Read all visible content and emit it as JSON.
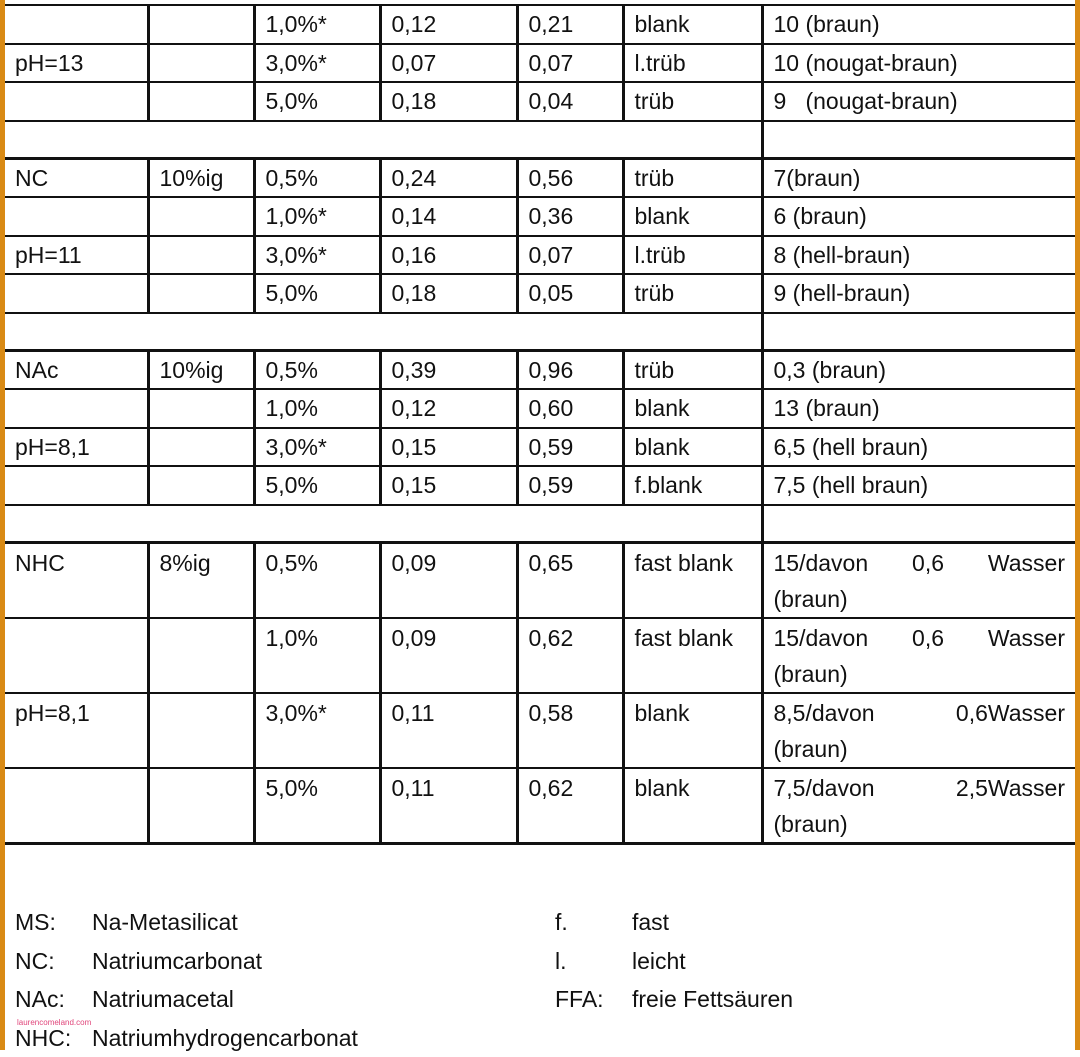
{
  "rows": {
    "ph13_a": [
      "",
      "",
      "1,0%*",
      "0,12",
      "0,21",
      "blank",
      "10 (braun)"
    ],
    "ph13_b": [
      "pH=13",
      "",
      "3,0%*",
      "0,07",
      "0,07",
      "l.trüb",
      "10 (nougat-braun)"
    ],
    "ph13_c": [
      "",
      "",
      "5,0%",
      "0,18",
      "0,04",
      "trüb",
      "9   (nougat-braun)"
    ],
    "nc_a": [
      "NC",
      "10%ig",
      "0,5%",
      "0,24",
      "0,56",
      "trüb",
      "7(braun)"
    ],
    "nc_b": [
      "",
      "",
      "1,0%*",
      "0,14",
      "0,36",
      "blank",
      "6 (braun)"
    ],
    "nc_c": [
      "pH=11",
      "",
      "3,0%*",
      "0,16",
      "0,07",
      "l.trüb",
      "8 (hell-braun)"
    ],
    "nc_d": [
      "",
      "",
      "5,0%",
      "0,18",
      "0,05",
      "trüb",
      "9 (hell-braun)"
    ],
    "nac_a": [
      "NAc",
      "10%ig",
      "0,5%",
      "0,39",
      "0,96",
      "trüb",
      "0,3 (braun)"
    ],
    "nac_b": [
      "",
      "",
      "1,0%",
      "0,12",
      "0,60",
      "blank",
      "13 (braun)"
    ],
    "nac_c": [
      "pH=8,1",
      "",
      "3,0%*",
      "0,15",
      "0,59",
      "blank",
      "6,5 (hell braun)"
    ],
    "nac_d": [
      "",
      "",
      "5,0%",
      "0,15",
      "0,59",
      "f.blank",
      "7,5 (hell braun)"
    ],
    "nhc_a": [
      "NHC",
      "8%ig",
      "0,5%",
      "0,09",
      "0,65",
      "fast blank",
      "15/davon 0,6 Wasser (braun)"
    ],
    "nhc_b": [
      "",
      "",
      "1,0%",
      "0,09",
      "0,62",
      "fast blank",
      "15/davon 0,6 Wasser (braun)"
    ],
    "nhc_c": [
      "pH=8,1",
      "",
      "3,0%*",
      "0,11",
      "0,58",
      "blank",
      " 8,5/davon 0,6Wasser (braun)"
    ],
    "nhc_d": [
      "",
      "",
      "5,0%",
      "0,11",
      "0,62",
      "blank",
      " 7,5/davon 2,5Wasser (braun)"
    ]
  },
  "legend": {
    "left": [
      {
        "abbr": "MS:",
        "def": "Na-Metasilicat"
      },
      {
        "abbr": "NC:",
        "def": "Natriumcarbonat"
      },
      {
        "abbr": "NAc:",
        "def": "Natriumacetal"
      },
      {
        "abbr": "NHC:",
        "def": "Natriumhydrogencarbonat"
      }
    ],
    "right": [
      {
        "abbr": "f.",
        "def": "fast"
      },
      {
        "abbr": "l.",
        "def": "leicht"
      },
      {
        "abbr": "FFA:",
        "def": "freie Fettsäuren"
      }
    ]
  },
  "watermark": "laurencomeland.com",
  "colors": {
    "frame": "#d98a14",
    "ink": "#111111",
    "watermark": "#e0457a"
  }
}
